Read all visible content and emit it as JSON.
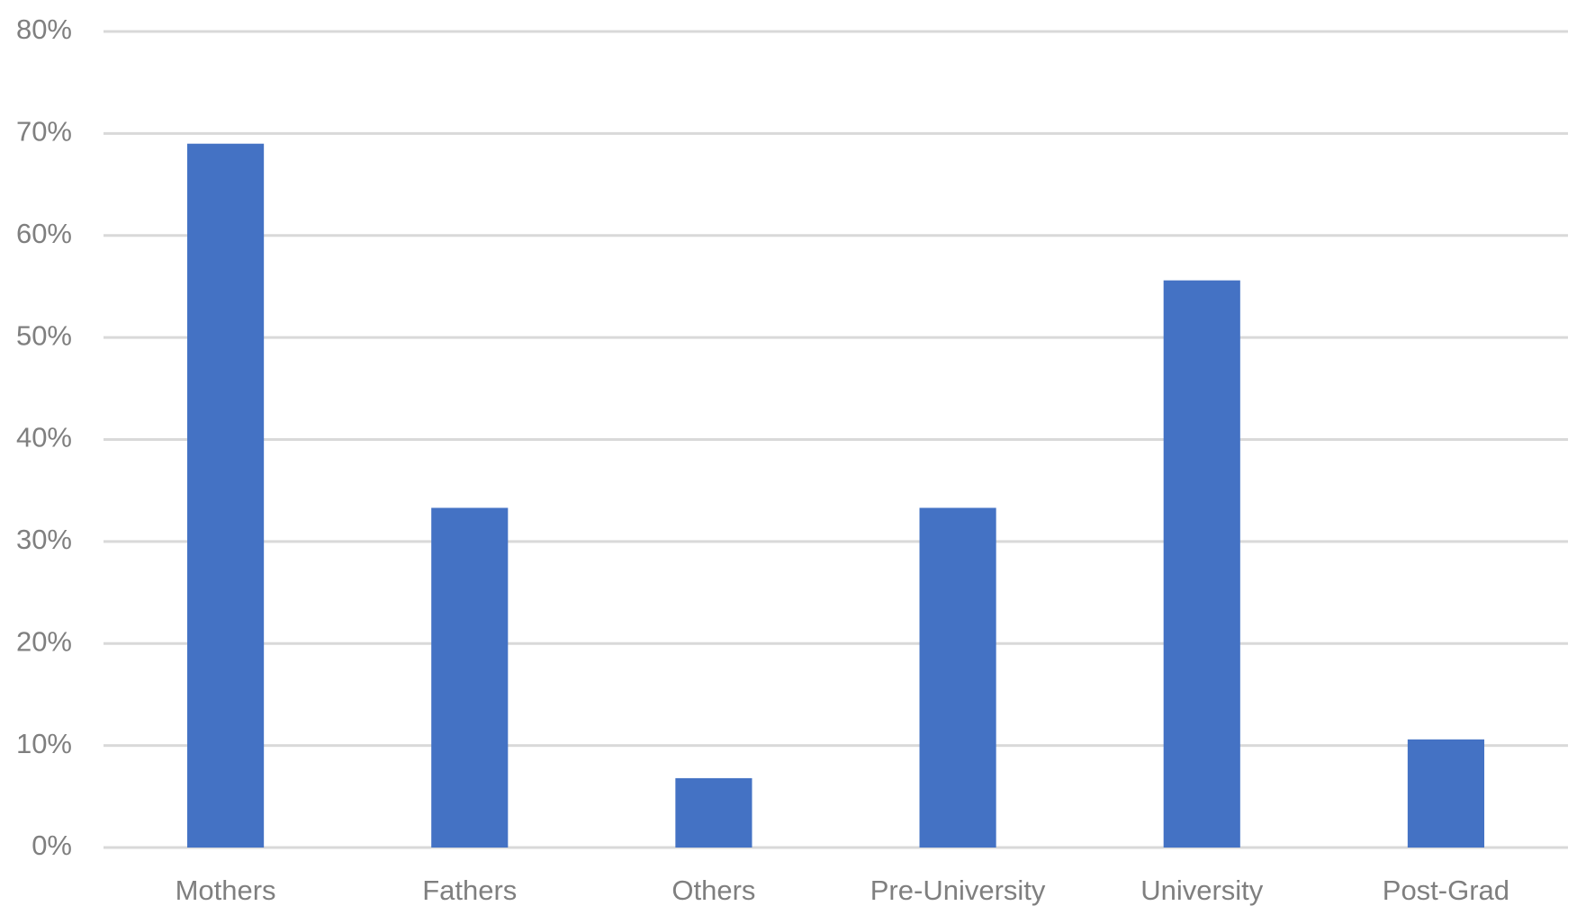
{
  "chart_data": {
    "type": "bar",
    "categories": [
      "Mothers",
      "Fathers",
      "Others",
      "Pre-University",
      "University",
      "Post-Grad"
    ],
    "values": [
      69,
      33.3,
      6.8,
      33.3,
      55.6,
      10.6
    ],
    "color": "#4472c4",
    "ylim": [
      0,
      80
    ],
    "yticks": [
      {
        "value": 0,
        "label": "0%"
      },
      {
        "value": 10,
        "label": "10%"
      },
      {
        "value": 20,
        "label": "20%"
      },
      {
        "value": 30,
        "label": "30%"
      },
      {
        "value": 40,
        "label": "40%"
      },
      {
        "value": 50,
        "label": "50%"
      },
      {
        "value": 60,
        "label": "60%"
      },
      {
        "value": 70,
        "label": "70%"
      },
      {
        "value": 80,
        "label": "80%"
      }
    ],
    "grid": true
  }
}
